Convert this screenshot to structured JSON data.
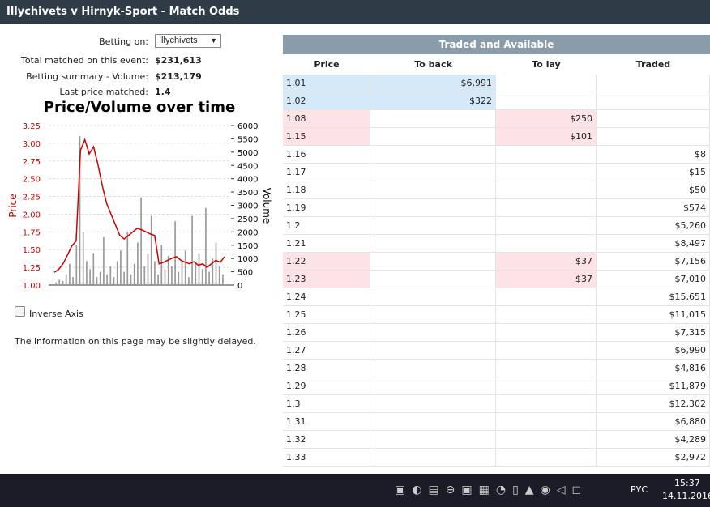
{
  "header": {
    "title": "Illychivets v Hirnyk-Sport - Match Odds"
  },
  "info": {
    "betting_on_label": "Betting on:",
    "betting_on_value": "Illychivets",
    "rows": [
      [
        "Total matched on this event:",
        "$231,613"
      ],
      [
        "Betting summary - Volume:",
        "$213,179"
      ],
      [
        "Last price matched:",
        "1.4"
      ]
    ]
  },
  "chart_data": {
    "type": "line",
    "title": "Price/Volume over time",
    "ylabel": "Price",
    "y2label": "Volume",
    "grid": true,
    "ylim": [
      1.0,
      3.25
    ],
    "yticks": [
      {
        "value": 1.0,
        "label": "1.00"
      },
      1.25,
      {
        "value": 1.5,
        "label": "1.50"
      },
      1.75,
      {
        "value": 2.0,
        "label": "2.00"
      },
      2.25,
      {
        "value": 2.5,
        "label": "2.50"
      },
      2.75,
      {
        "value": 3.0,
        "label": "3.00"
      },
      3.25
    ],
    "y2lim": [
      0,
      6000
    ],
    "y2ticks": [
      0,
      500,
      1000,
      1500,
      2000,
      2500,
      3000,
      3500,
      4000,
      4500,
      5000,
      5500,
      6000
    ],
    "series": [
      {
        "type": "bar",
        "axis": "y2",
        "color": "#999999",
        "values": [
          100,
          200,
          150,
          400,
          800,
          300,
          1500,
          5600,
          2000,
          900,
          600,
          1200,
          300,
          500,
          1800,
          400,
          700,
          300,
          900,
          1300,
          500,
          2000,
          400,
          800,
          1600,
          3300,
          700,
          1200,
          2600,
          900,
          400,
          1500,
          600,
          1100,
          700,
          2400,
          500,
          900,
          1300,
          300,
          2600,
          800,
          1200,
          600,
          2900,
          500,
          1000,
          1600,
          700,
          400
        ]
      },
      {
        "type": "line",
        "axis": "y",
        "color": "#cc0000",
        "values": [
          1.18,
          1.22,
          1.3,
          1.42,
          1.55,
          1.62,
          2.9,
          3.05,
          2.85,
          2.95,
          2.7,
          2.4,
          2.15,
          2.0,
          1.85,
          1.7,
          1.65,
          1.7,
          1.75,
          1.8,
          1.78,
          1.75,
          1.72,
          1.7,
          1.3,
          1.32,
          1.35,
          1.38,
          1.4,
          1.35,
          1.32,
          1.3,
          1.33,
          1.28,
          1.3,
          1.25,
          1.3,
          1.35,
          1.32,
          1.4
        ]
      }
    ]
  },
  "options": {
    "inverse_axis": "Inverse Axis"
  },
  "note": "The information on this page may be slightly delayed.",
  "table": {
    "title": "Traded and Available",
    "columns": [
      "Price",
      "To back",
      "To lay",
      "Traded"
    ],
    "rows": [
      [
        "1.01",
        "$6,991",
        null,
        null
      ],
      [
        "1.02",
        "$322",
        null,
        null
      ],
      [
        "1.08",
        null,
        "$250",
        null
      ],
      [
        "1.15",
        null,
        "$101",
        null
      ],
      [
        "1.16",
        null,
        null,
        "$8"
      ],
      [
        "1.17",
        null,
        null,
        "$15"
      ],
      [
        "1.18",
        null,
        null,
        "$50"
      ],
      [
        "1.19",
        null,
        null,
        "$574"
      ],
      [
        "1.2",
        null,
        null,
        "$5,260"
      ],
      [
        "1.21",
        null,
        null,
        "$8,497"
      ],
      [
        "1.22",
        null,
        "$37",
        "$7,156"
      ],
      [
        "1.23",
        null,
        "$37",
        "$7,010"
      ],
      [
        "1.24",
        null,
        null,
        "$15,651"
      ],
      [
        "1.25",
        null,
        null,
        "$11,015"
      ],
      [
        "1.26",
        null,
        null,
        "$7,315"
      ],
      [
        "1.27",
        null,
        null,
        "$6,990"
      ],
      [
        "1.28",
        null,
        null,
        "$4,816"
      ],
      [
        "1.29",
        null,
        null,
        "$11,879"
      ],
      [
        "1.3",
        null,
        null,
        "$12,302"
      ],
      [
        "1.31",
        null,
        null,
        "$6,880"
      ],
      [
        "1.32",
        null,
        null,
        "$4,289"
      ],
      [
        "1.33",
        null,
        null,
        "$2,972"
      ]
    ]
  },
  "taskbar": {
    "lang": "РУС",
    "time": "15:37",
    "date": "14.11.2016"
  }
}
